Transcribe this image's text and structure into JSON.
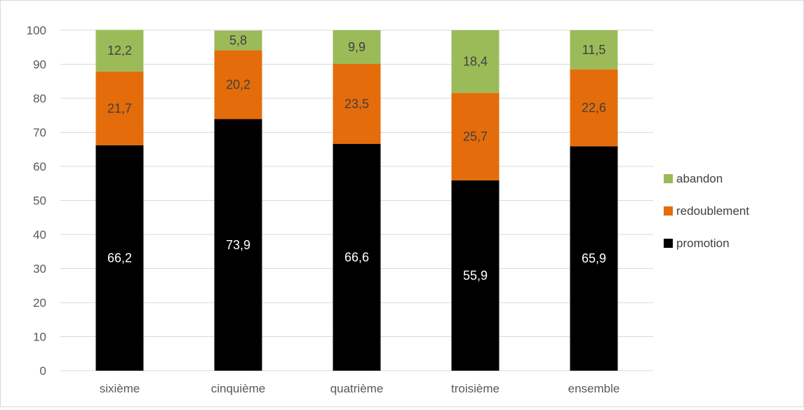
{
  "chart_data": {
    "type": "bar",
    "stacked": true,
    "categories": [
      "sixième",
      "cinquième",
      "quatrième",
      "troisième",
      "ensemble"
    ],
    "series": [
      {
        "name": "promotion",
        "values": [
          66.2,
          73.9,
          66.6,
          55.9,
          65.9
        ],
        "color": "#000000",
        "label_color": "#ffffff"
      },
      {
        "name": "redoublement",
        "values": [
          21.7,
          20.2,
          23.5,
          25.7,
          22.6
        ],
        "color": "#e46c0a",
        "label_color": "#404040"
      },
      {
        "name": "abandon",
        "values": [
          12.2,
          5.8,
          9.9,
          18.4,
          11.5
        ],
        "color": "#9bbb59",
        "label_color": "#404040"
      }
    ],
    "data_labels": [
      [
        "66,2",
        "73,9",
        "66,6",
        "55,9",
        "65,9"
      ],
      [
        "21,7",
        "20,2",
        "23,5",
        "25,7",
        "22,6"
      ],
      [
        "12,2",
        "5,8",
        "9,9",
        "18,4",
        "11,5"
      ]
    ],
    "y_ticks": [
      "0",
      "10",
      "20",
      "30",
      "40",
      "50",
      "60",
      "70",
      "80",
      "90",
      "100"
    ],
    "ylim": [
      0,
      100
    ],
    "grid": true,
    "legend_position": "right",
    "legend_order": [
      "abandon",
      "redoublement",
      "promotion"
    ]
  }
}
